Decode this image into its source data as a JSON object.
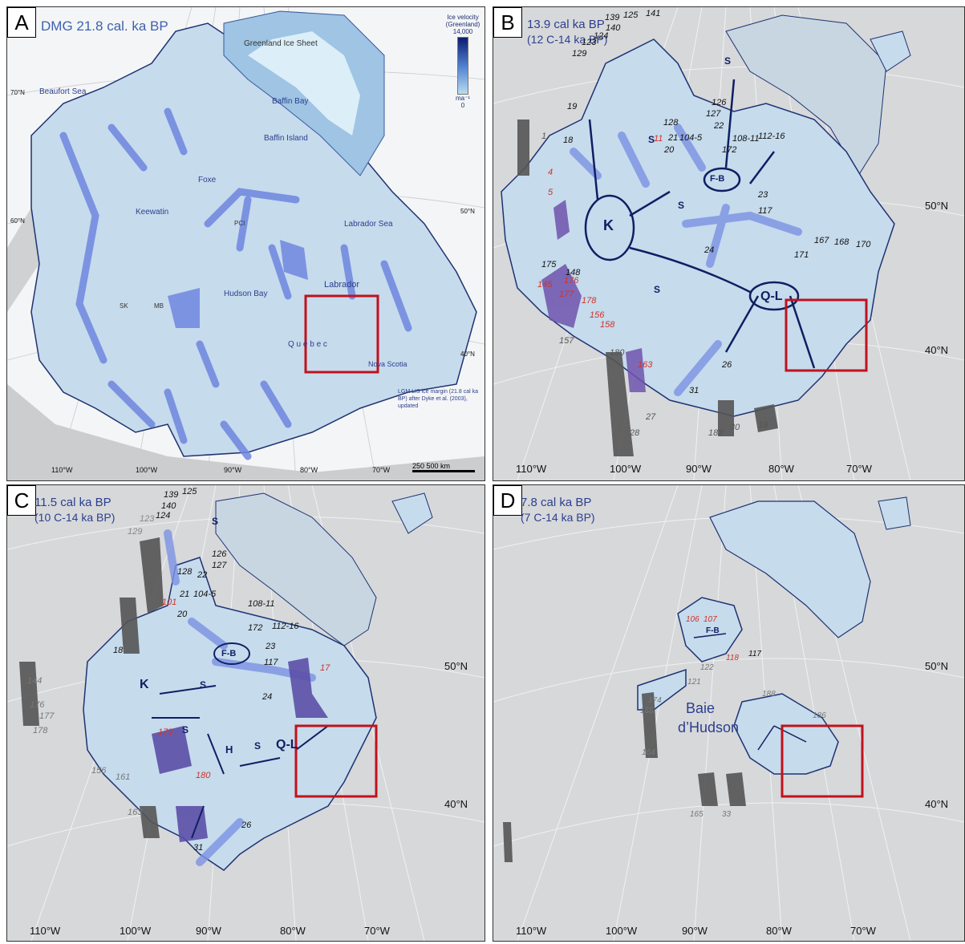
{
  "panels": {
    "A": {
      "tag": "A",
      "title_line1": "DMG 21.8 cal. ka BP",
      "legend_title": "Ice velocity (Greenland)",
      "legend_max": "14,000",
      "legend_unit": "ma⁻¹",
      "legend_min": "0",
      "scale_label": "250 500 km",
      "note": "LGM LIS ice margin (21.8 cal ka BP) after Dyke et al. (2003), updated",
      "places": [
        "Greenland Ice Sheet",
        "Beaufort Sea",
        "Baffin Bay",
        "Baffin Island",
        "Foxe",
        "Keewatin",
        "Hudson Bay",
        "Labrador",
        "Labrador Sea",
        "Q u é b e c",
        "Nova Scotia",
        "PCI",
        "MB",
        "SK"
      ],
      "lon_labels": [
        "110°W",
        "100°W",
        "90°W",
        "80°W",
        "70°W"
      ],
      "lat_labels": [
        "70°N",
        "60°N",
        "50°N",
        "40°N"
      ]
    },
    "B": {
      "tag": "B",
      "title_line1": "13.9 cal ka BP",
      "title_line2": "(12 C-14 ka BP)",
      "domes": [
        "K",
        "F-B",
        "Q-L"
      ],
      "saddles": [
        "S",
        "S",
        "S",
        "S"
      ],
      "numbers_black": [
        "139",
        "125",
        "141",
        "123",
        "124",
        "140",
        "129",
        "19",
        "126",
        "127",
        "128",
        "22",
        "108-11",
        "21",
        "104-5",
        "112-16",
        "172",
        "20",
        "23",
        "117",
        "18",
        "175",
        "167",
        "168",
        "170",
        "171",
        "24",
        "148",
        "26",
        "31"
      ],
      "numbers_red": [
        "11",
        "4",
        "5",
        "145",
        "176",
        "177",
        "178",
        "156",
        "158",
        "163"
      ],
      "numbers_grey": [
        "1",
        "157",
        "180",
        "28",
        "27",
        "30",
        "183",
        "19"
      ],
      "lon_labels": [
        "110°W",
        "100°W",
        "90°W",
        "80°W",
        "70°W"
      ],
      "lat_labels": [
        "50°N",
        "40°N"
      ]
    },
    "C": {
      "tag": "C",
      "title_line1": "11.5 cal ka BP",
      "title_line2": "(10 C-14 ka BP)",
      "domes": [
        "K",
        "F-B",
        "Q-L",
        "H"
      ],
      "saddles": [
        "S",
        "S",
        "S",
        "S"
      ],
      "numbers_black": [
        "139",
        "125",
        "140",
        "124",
        "123",
        "129",
        "126",
        "127",
        "128",
        "22",
        "108-11",
        "21",
        "104-5",
        "112-16",
        "172",
        "20",
        "23",
        "117",
        "18",
        "24",
        "26",
        "31"
      ],
      "numbers_red": [
        "101",
        "17",
        "179",
        "180"
      ],
      "numbers_grey": [
        "144",
        "176",
        "177",
        "178",
        "156",
        "161",
        "163"
      ],
      "lon_labels": [
        "110°W",
        "100°W",
        "90°W",
        "80°W",
        "70°W"
      ],
      "lat_labels": [
        "50°N",
        "40°N"
      ]
    },
    "D": {
      "tag": "D",
      "title_line1": "7.8 cal ka BP",
      "title_line2": "(7 C-14 ka BP)",
      "places": [
        "Baie",
        "d’Hudson"
      ],
      "domes": [
        "F-B"
      ],
      "numbers_black": [
        "117",
        "122",
        "121",
        "166",
        "174",
        "164",
        "165",
        "33",
        "188",
        "186"
      ],
      "numbers_red": [
        "106",
        "107",
        "118"
      ],
      "lon_labels": [
        "110°W",
        "100°W",
        "90°W",
        "80°W",
        "70°W"
      ],
      "lat_labels": [
        "50°N",
        "40°N"
      ]
    }
  },
  "colors": {
    "ice": "#c6dbec",
    "ice_outline": "#1f3272",
    "ice_streams": "#6f86e0",
    "ice_streams_red": "#7a4cb0",
    "greenland_ice": "#a9c2d4",
    "land": "#c9cbcc",
    "box": "#c0121d",
    "text_blue": "#2c3f8e",
    "red_number": "#d0322a"
  }
}
